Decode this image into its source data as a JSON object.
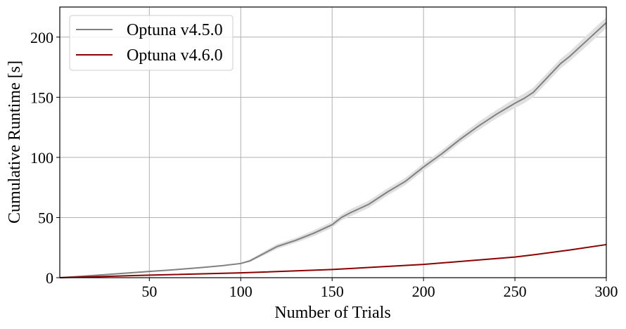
{
  "chart_data": {
    "type": "line",
    "title": "",
    "xlabel": "Number of Trials",
    "ylabel": "Cumulative Runtime [s]",
    "xlim": [
      1,
      300
    ],
    "ylim": [
      0,
      225
    ],
    "xticks": [
      50,
      100,
      150,
      200,
      250,
      300
    ],
    "yticks": [
      0,
      50,
      100,
      150,
      200
    ],
    "grid": true,
    "legend_placement": "top-left",
    "series": [
      {
        "name": "Optuna v4.5.0",
        "color": "#808080",
        "band_color": "#e0e0e0",
        "x": [
          1,
          10,
          20,
          30,
          40,
          50,
          60,
          70,
          80,
          90,
          100,
          105,
          110,
          120,
          130,
          140,
          150,
          155,
          160,
          170,
          180,
          190,
          200,
          210,
          220,
          230,
          240,
          250,
          255,
          260,
          265,
          270,
          275,
          280,
          290,
          300
        ],
        "y": [
          0,
          0.9,
          1.9,
          3,
          4.1,
          5.2,
          6.2,
          7.4,
          8.6,
          10,
          11.8,
          14,
          18,
          26,
          31,
          37,
          44,
          50,
          54,
          61,
          71,
          80,
          92,
          103,
          115,
          126,
          136,
          145,
          149,
          154,
          162,
          170,
          178,
          184,
          198,
          212
        ],
        "band": [
          0,
          0,
          0,
          0,
          0,
          0,
          0,
          0,
          0,
          0,
          0.5,
          1,
          1.5,
          2,
          2,
          2.5,
          2.5,
          2.5,
          3,
          3,
          3,
          3,
          3,
          3,
          3,
          3.5,
          3.5,
          4,
          4,
          4,
          4,
          4,
          4,
          4,
          4.5,
          4.5
        ]
      },
      {
        "name": "Optuna v4.6.0",
        "color": "#8b0000",
        "x": [
          1,
          50,
          100,
          150,
          200,
          250,
          260,
          280,
          300
        ],
        "y": [
          0,
          2.1,
          4,
          6.8,
          11,
          17.2,
          19,
          23,
          27.5
        ]
      }
    ]
  }
}
